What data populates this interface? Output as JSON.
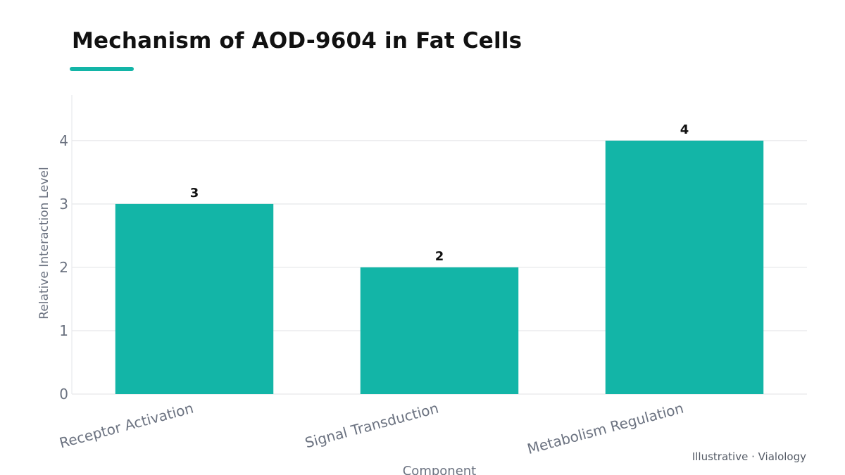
{
  "chart_data": {
    "type": "bar",
    "title": "Mechanism of AOD-9604 in Fat Cells",
    "xlabel": "Component",
    "ylabel": "Relative Interaction Level",
    "categories": [
      "Receptor Activation",
      "Signal Transduction",
      "Metabolism Regulation"
    ],
    "values": [
      3,
      2,
      4
    ],
    "data_labels": [
      "3",
      "2",
      "4"
    ],
    "yticks": [
      "0",
      "1",
      "2",
      "3",
      "4"
    ],
    "ylim": [
      0,
      4.72
    ],
    "grid": true,
    "bar_color": "#13b5a7"
  },
  "accent_color": "#13b5a7",
  "credit": "Illustrative · Vialology"
}
